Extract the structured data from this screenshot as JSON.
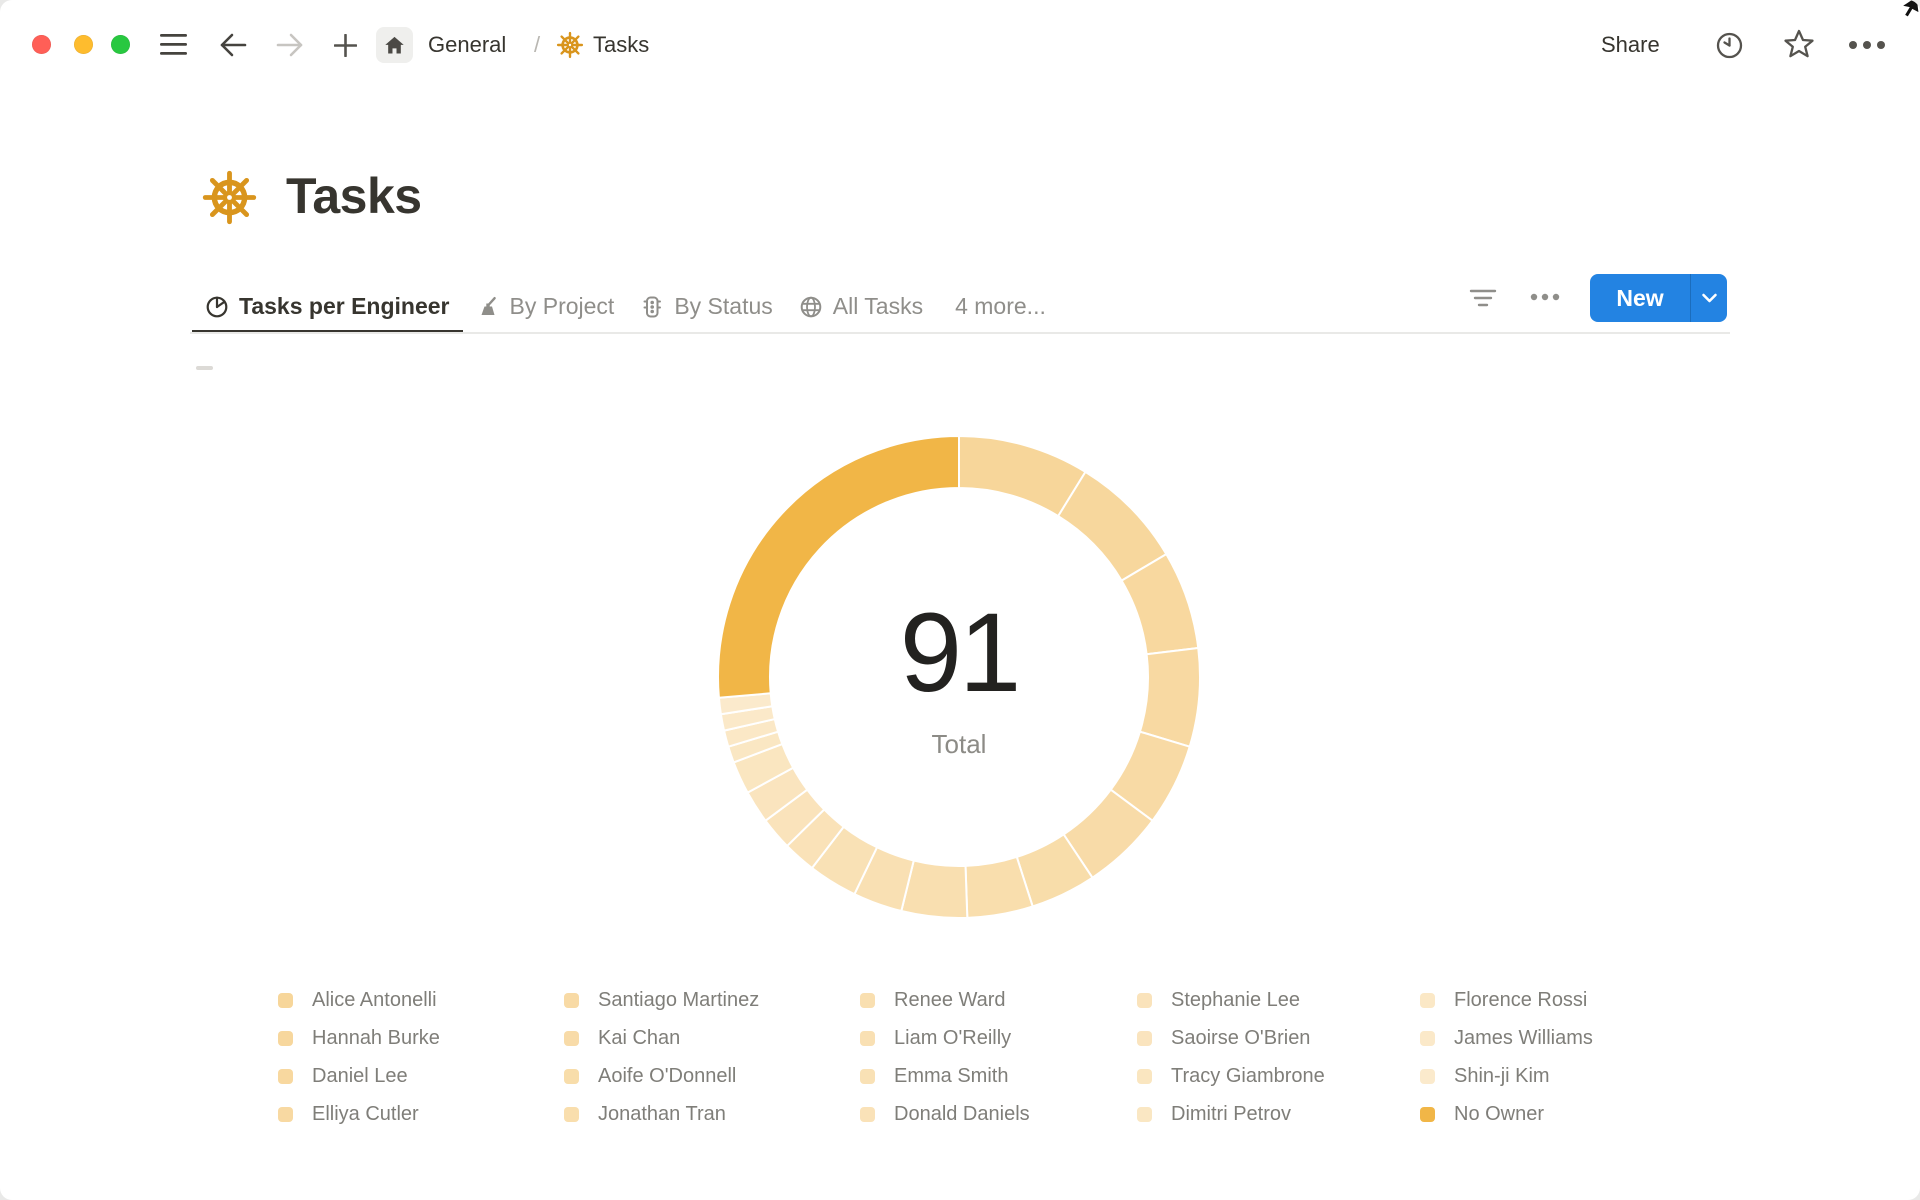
{
  "titlebar": {
    "traffic_lights": {
      "close": "#ff5f57",
      "minimize": "#febc2e",
      "zoom": "#28c840"
    },
    "breadcrumb": {
      "workspace": "General",
      "separator": "/",
      "page": "Tasks"
    },
    "share_label": "Share"
  },
  "page": {
    "icon": "helm-wheel-icon",
    "title": "Tasks"
  },
  "view_tabs": {
    "tabs": [
      {
        "label": "Tasks per Engineer",
        "icon": "pie-chart-icon",
        "active": true
      },
      {
        "label": "By Project",
        "icon": "inkwell-icon",
        "active": false
      },
      {
        "label": "By Status",
        "icon": "traffic-light-icon",
        "active": false
      },
      {
        "label": "All Tasks",
        "icon": "globe-icon",
        "active": false
      }
    ],
    "more_label": "4 more..."
  },
  "toolbar": {
    "new_label": "New"
  },
  "colors": {
    "accent_blue": "#2383e2",
    "gold": "#f1b647",
    "wheel_orange": "#d9951d"
  },
  "chart_data": {
    "type": "pie",
    "variant": "donut",
    "title": "Tasks per Engineer",
    "center_value": "91",
    "center_label": "Total",
    "total": 91,
    "start_angle_deg": 0,
    "direction": "clockwise",
    "legend_position": "bottom",
    "legend_columns": 5,
    "entries": [
      {
        "name": "Alice Antonelli",
        "value": 8,
        "color": "#f7d69a"
      },
      {
        "name": "Hannah Burke",
        "value": 7,
        "color": "#f7d79d"
      },
      {
        "name": "Daniel Lee",
        "value": 6,
        "color": "#f8d89f"
      },
      {
        "name": "Elliya Cutler",
        "value": 6,
        "color": "#f8d9a2"
      },
      {
        "name": "Santiago Martinez",
        "value": 5,
        "color": "#f8daa5"
      },
      {
        "name": "Kai Chan",
        "value": 5,
        "color": "#f8dba8"
      },
      {
        "name": "Aoife O'Donnell",
        "value": 4,
        "color": "#f8ddaa"
      },
      {
        "name": "Jonathan Tran",
        "value": 4,
        "color": "#f9dead"
      },
      {
        "name": "Renee Ward",
        "value": 4,
        "color": "#f9dfb0"
      },
      {
        "name": "Liam O'Reilly",
        "value": 3,
        "color": "#f9e0b3"
      },
      {
        "name": "Emma Smith",
        "value": 3,
        "color": "#f9e1b5"
      },
      {
        "name": "Donald Daniels",
        "value": 2,
        "color": "#fae2b8"
      },
      {
        "name": "Stephanie Lee",
        "value": 2,
        "color": "#fae3bb"
      },
      {
        "name": "Saoirse O'Brien",
        "value": 2,
        "color": "#fae4be"
      },
      {
        "name": "Tracy Giambrone",
        "value": 2,
        "color": "#fae6c0"
      },
      {
        "name": "Dimitri Petrov",
        "value": 1,
        "color": "#fae7c3"
      },
      {
        "name": "Florence Rossi",
        "value": 1,
        "color": "#fbe8c6"
      },
      {
        "name": "James Williams",
        "value": 1,
        "color": "#fbe9c9"
      },
      {
        "name": "Shin-ji Kim",
        "value": 1,
        "color": "#fbeacc"
      },
      {
        "name": "No Owner",
        "value": 24,
        "color": "#f1b647"
      }
    ]
  }
}
